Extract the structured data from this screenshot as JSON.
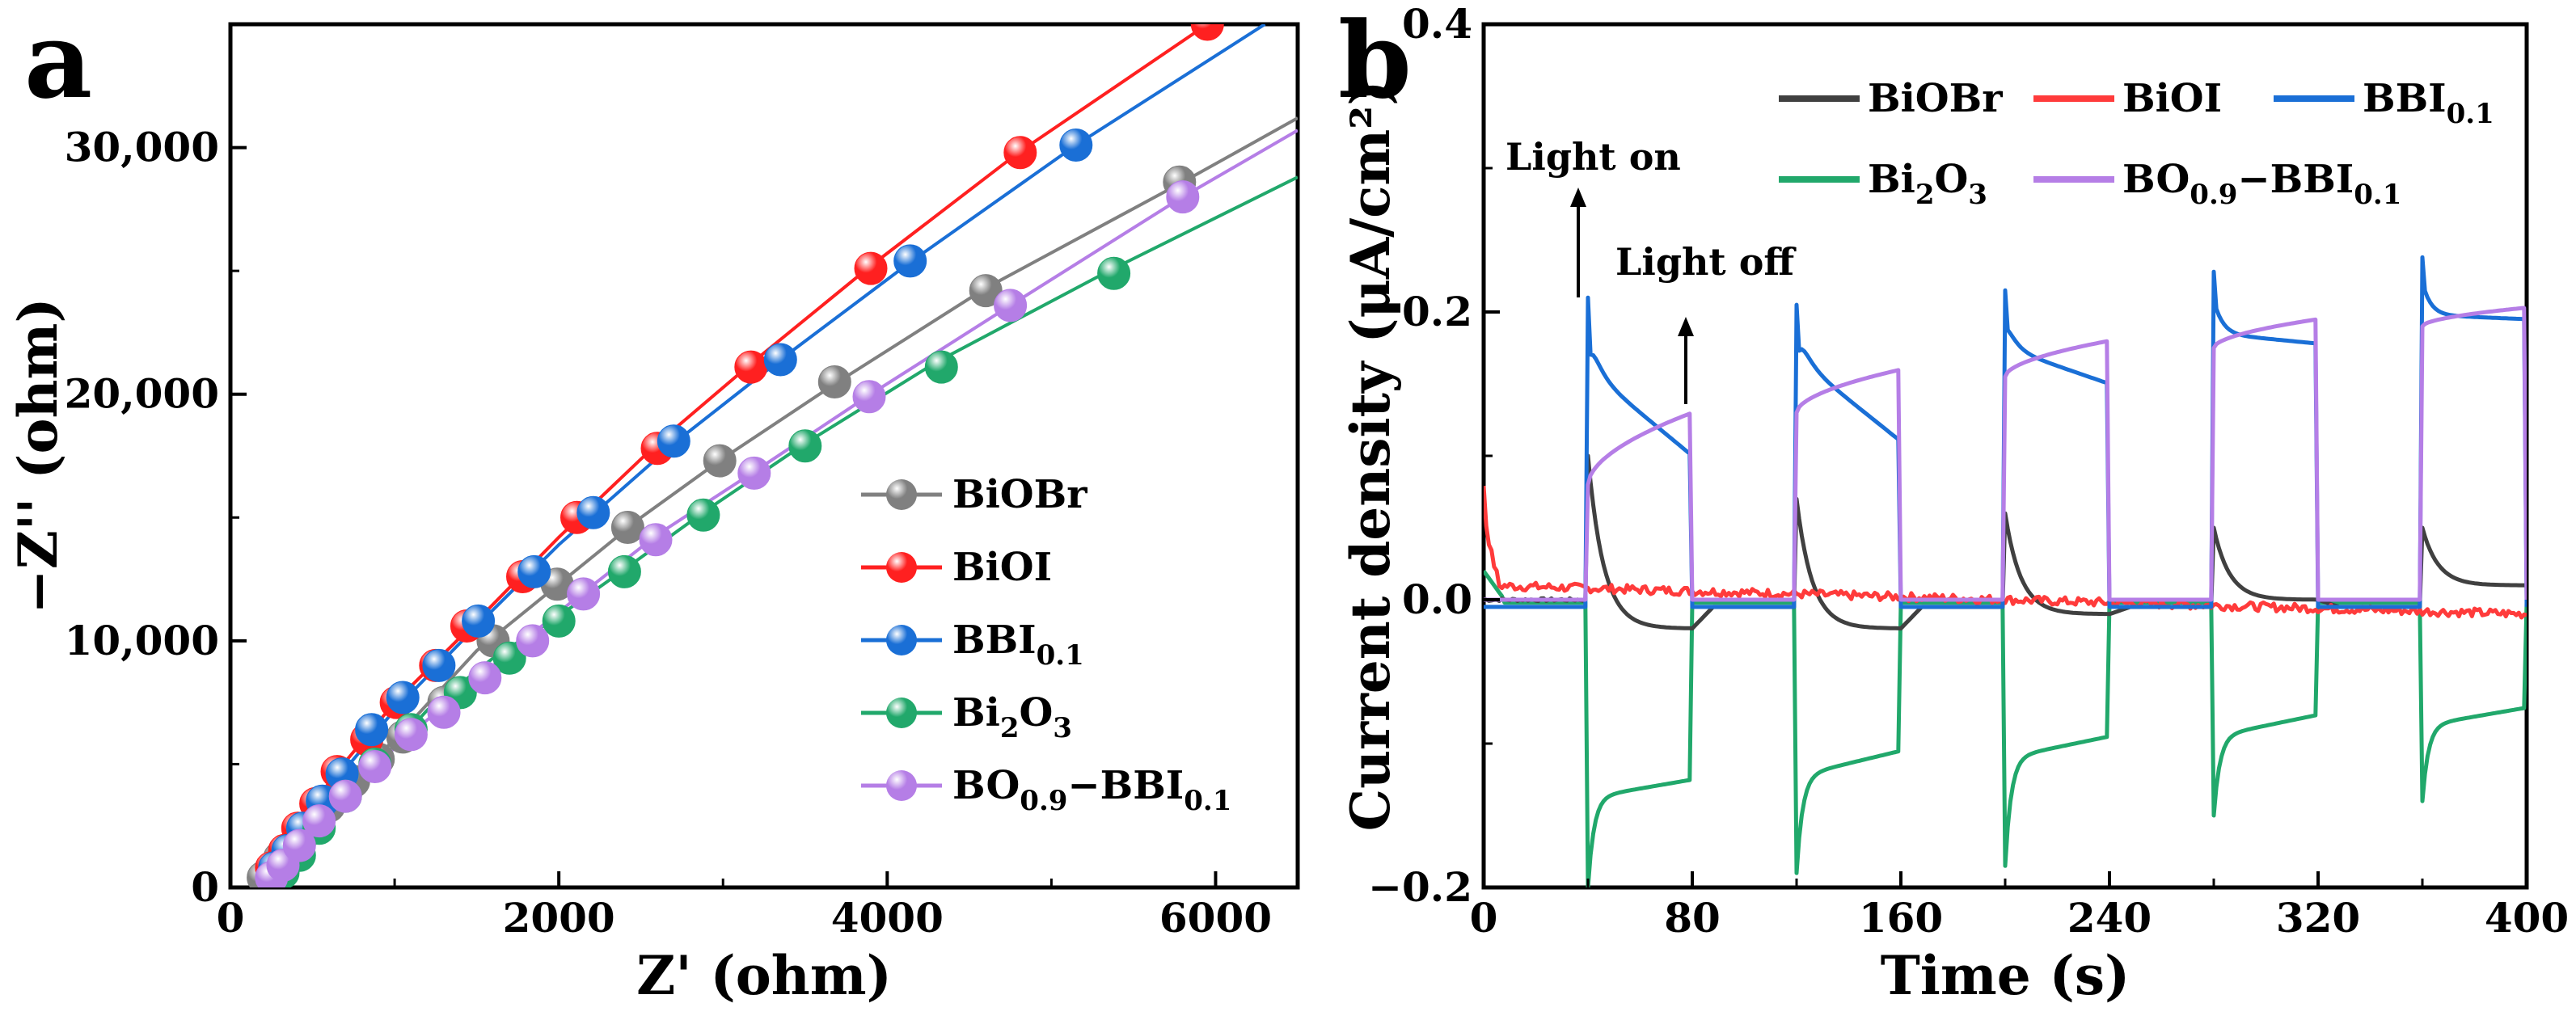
{
  "chart_data": [
    {
      "type": "scatter",
      "panel_label": "a",
      "xlabel": "Z' (ohm)",
      "ylabel": "−Z'' (ohm)",
      "xlim": [
        0,
        6500
      ],
      "ylim": [
        0,
        35000
      ],
      "x_ticks": [
        0,
        2000,
        4000,
        6000
      ],
      "x_tick_labels": [
        "0",
        "2000",
        "4000",
        "6000"
      ],
      "y_ticks": [
        0,
        10000,
        20000,
        30000
      ],
      "y_tick_labels": [
        "0",
        "10,000",
        "20,000",
        "30,000"
      ],
      "legend_position": "bottom-right",
      "series": [
        {
          "name": "BiOBr",
          "label_main": "BiOBr",
          "color": "#808080",
          "fit": [
            [
              150,
              0
            ],
            [
              260,
              800
            ],
            [
              420,
              2000
            ],
            [
              700,
              4100
            ],
            [
              1000,
              6000
            ],
            [
              1500,
              9600
            ],
            [
              2000,
              12300
            ],
            [
              2500,
              15000
            ],
            [
              3000,
              17400
            ],
            [
              3700,
              20500
            ],
            [
              4600,
              24300
            ],
            [
              5800,
              28600
            ],
            [
              6500,
              31200
            ]
          ],
          "points": [
            [
              200,
              400
            ],
            [
              300,
              1200
            ],
            [
              450,
              2200
            ],
            [
              600,
              3300
            ],
            [
              750,
              4300
            ],
            [
              900,
              5200
            ],
            [
              1050,
              6100
            ],
            [
              1300,
              7500
            ],
            [
              1600,
              10000
            ],
            [
              1990,
              12300
            ],
            [
              2420,
              14600
            ],
            [
              2980,
              17300
            ],
            [
              3680,
              20500
            ],
            [
              4600,
              24200
            ],
            [
              5780,
              28600
            ]
          ]
        },
        {
          "name": "BiOI",
          "label_main": "BiOI",
          "color": "#ff2020",
          "fit": [
            [
              150,
              0
            ],
            [
              250,
              1000
            ],
            [
              400,
              2500
            ],
            [
              700,
              5100
            ],
            [
              1000,
              7500
            ],
            [
              1500,
              10800
            ],
            [
              2000,
              14200
            ],
            [
              2600,
              18000
            ],
            [
              3200,
              21400
            ],
            [
              3900,
              25200
            ],
            [
              4800,
              29800
            ],
            [
              5950,
              35000
            ]
          ],
          "points": [
            [
              250,
              800
            ],
            [
              330,
              1500
            ],
            [
              410,
              2400
            ],
            [
              520,
              3400
            ],
            [
              650,
              4700
            ],
            [
              830,
              6000
            ],
            [
              1010,
              7500
            ],
            [
              1250,
              9000
            ],
            [
              1440,
              10600
            ],
            [
              1780,
              12600
            ],
            [
              2110,
              15000
            ],
            [
              2600,
              17800
            ],
            [
              3170,
              21100
            ],
            [
              3900,
              25100
            ],
            [
              4810,
              29800
            ],
            [
              5950,
              35000
            ]
          ]
        },
        {
          "name": "BBI0.1",
          "label_main": "BBI",
          "label_sub": "0.1",
          "color": "#1a6fd6",
          "fit": [
            [
              150,
              0
            ],
            [
              260,
              900
            ],
            [
              420,
              2300
            ],
            [
              700,
              4800
            ],
            [
              1000,
              7200
            ],
            [
              1500,
              10600
            ],
            [
              2000,
              13900
            ],
            [
              2700,
              18000
            ],
            [
              3350,
              21400
            ],
            [
              4150,
              25400
            ],
            [
              5150,
              30100
            ],
            [
              6300,
              35000
            ]
          ],
          "points": [
            [
              270,
              800
            ],
            [
              350,
              1500
            ],
            [
              440,
              2400
            ],
            [
              560,
              3500
            ],
            [
              680,
              4600
            ],
            [
              860,
              6400
            ],
            [
              1050,
              7700
            ],
            [
              1270,
              9000
            ],
            [
              1510,
              10800
            ],
            [
              1850,
              12800
            ],
            [
              2210,
              15200
            ],
            [
              2700,
              18100
            ],
            [
              3350,
              21400
            ],
            [
              4140,
              25400
            ],
            [
              5150,
              30100
            ]
          ]
        },
        {
          "name": "Bi2O3",
          "label_main": "Bi",
          "label_sub": "2",
          "label_main2": "O",
          "label_sub2": "3",
          "color": "#21a86b",
          "fit": [
            [
              150,
              0
            ],
            [
              300,
              800
            ],
            [
              500,
              2100
            ],
            [
              800,
              4300
            ],
            [
              1200,
              7200
            ],
            [
              1600,
              9300
            ],
            [
              2000,
              11000
            ],
            [
              2400,
              12900
            ],
            [
              2900,
              15300
            ],
            [
              3500,
              18000
            ],
            [
              4300,
              21300
            ],
            [
              5350,
              25000
            ],
            [
              6500,
              28800
            ]
          ],
          "points": [
            [
              320,
              600
            ],
            [
              420,
              1300
            ],
            [
              540,
              2400
            ],
            [
              700,
              3700
            ],
            [
              880,
              5000
            ],
            [
              1100,
              6400
            ],
            [
              1400,
              7900
            ],
            [
              1700,
              9300
            ],
            [
              2000,
              10800
            ],
            [
              2400,
              12800
            ],
            [
              2880,
              15100
            ],
            [
              3500,
              17900
            ],
            [
              4330,
              21100
            ],
            [
              5380,
              24900
            ]
          ]
        },
        {
          "name": "BO0.9−BBI0.1",
          "label_main": "BO",
          "label_sub": "0.9",
          "label_main2": "−BBI",
          "label_sub2": "0.1",
          "color": "#b57ee6",
          "fit": [
            [
              150,
              0
            ],
            [
              280,
              800
            ],
            [
              480,
              2100
            ],
            [
              800,
              4500
            ],
            [
              1200,
              6800
            ],
            [
              1600,
              9000
            ],
            [
              2100,
              11700
            ],
            [
              2600,
              14300
            ],
            [
              3200,
              16900
            ],
            [
              3900,
              20000
            ],
            [
              4750,
              23600
            ],
            [
              5800,
              28000
            ],
            [
              6500,
              30700
            ]
          ],
          "points": [
            [
              250,
              400
            ],
            [
              320,
              900
            ],
            [
              420,
              1700
            ],
            [
              540,
              2700
            ],
            [
              700,
              3700
            ],
            [
              880,
              4900
            ],
            [
              1100,
              6200
            ],
            [
              1300,
              7100
            ],
            [
              1550,
              8500
            ],
            [
              1840,
              10000
            ],
            [
              2150,
              11900
            ],
            [
              2590,
              14100
            ],
            [
              3190,
              16800
            ],
            [
              3890,
              19900
            ],
            [
              4750,
              23600
            ],
            [
              5800,
              28000
            ]
          ]
        }
      ]
    },
    {
      "type": "line",
      "panel_label": "b",
      "xlabel": "Time (s)",
      "ylabel": "Current density (μA/cm²)",
      "xlim": [
        0,
        400
      ],
      "ylim": [
        -0.2,
        0.4
      ],
      "x_ticks": [
        0,
        80,
        160,
        240,
        320,
        400
      ],
      "x_tick_labels": [
        "0",
        "80",
        "160",
        "240",
        "320",
        "400"
      ],
      "y_ticks": [
        -0.2,
        0.0,
        0.2,
        0.4
      ],
      "y_tick_labels": [
        "−0.2",
        "0.0",
        "0.2",
        "0.4"
      ],
      "legend_position": "top",
      "annotations": [
        {
          "text": "Light on",
          "x": 40
        },
        {
          "text": "Light off",
          "x": 80
        }
      ],
      "light_on_start": [
        40,
        120,
        200,
        280,
        360
      ],
      "light_on_end": [
        80,
        160,
        240,
        320,
        400
      ],
      "series": [
        {
          "name": "BiOBr",
          "label_main": "BiOBr",
          "color": "#404040",
          "off_level": -0.01,
          "on_peak": [
            0.1,
            0.07,
            0.06,
            0.05,
            0.05
          ],
          "on_end": [
            -0.02,
            -0.02,
            -0.01,
            0.0,
            0.01
          ],
          "on_shape": "decay_neg"
        },
        {
          "name": "BiOI",
          "label_main": "BiOI",
          "color": "#ff3b3b",
          "start": 0.08,
          "baseline": [
            0.01,
            -0.01
          ]
        },
        {
          "name": "BBI0.1",
          "label_main": "BBI",
          "label_sub": "0.1",
          "color": "#1a6fd6",
          "off_level": -0.005,
          "on_peak": [
            0.21,
            0.205,
            0.215,
            0.228,
            0.238
          ],
          "on_mid": [
            0.16,
            0.168,
            0.175,
            0.185,
            0.198
          ],
          "on_end": [
            0.1,
            0.11,
            0.15,
            0.178,
            0.195
          ],
          "on_shape": "decay"
        },
        {
          "name": "Bi2O3",
          "label_main": "Bi",
          "label_sub": "2",
          "label_main2": "O",
          "label_sub2": "3",
          "color": "#21a86b",
          "off_level": -0.002,
          "on_peak": [
            -0.2,
            -0.19,
            -0.185,
            -0.15,
            -0.14
          ],
          "on_mid": [
            -0.15,
            -0.14,
            -0.125,
            -0.11,
            -0.1
          ],
          "on_end": [
            -0.125,
            -0.105,
            -0.095,
            -0.08,
            -0.075
          ],
          "on_shape": "neg_recover"
        },
        {
          "name": "BO0.9−BBI0.1",
          "label_main": "BO",
          "label_sub": "0.9",
          "label_main2": "−BBI",
          "label_sub2": "0.1",
          "color": "#b57ee6",
          "off_level": 0.0,
          "on_start": [
            0.08,
            0.13,
            0.155,
            0.175,
            0.19
          ],
          "on_end": [
            0.13,
            0.16,
            0.18,
            0.195,
            0.203
          ],
          "on_shape": "rise"
        }
      ]
    }
  ]
}
